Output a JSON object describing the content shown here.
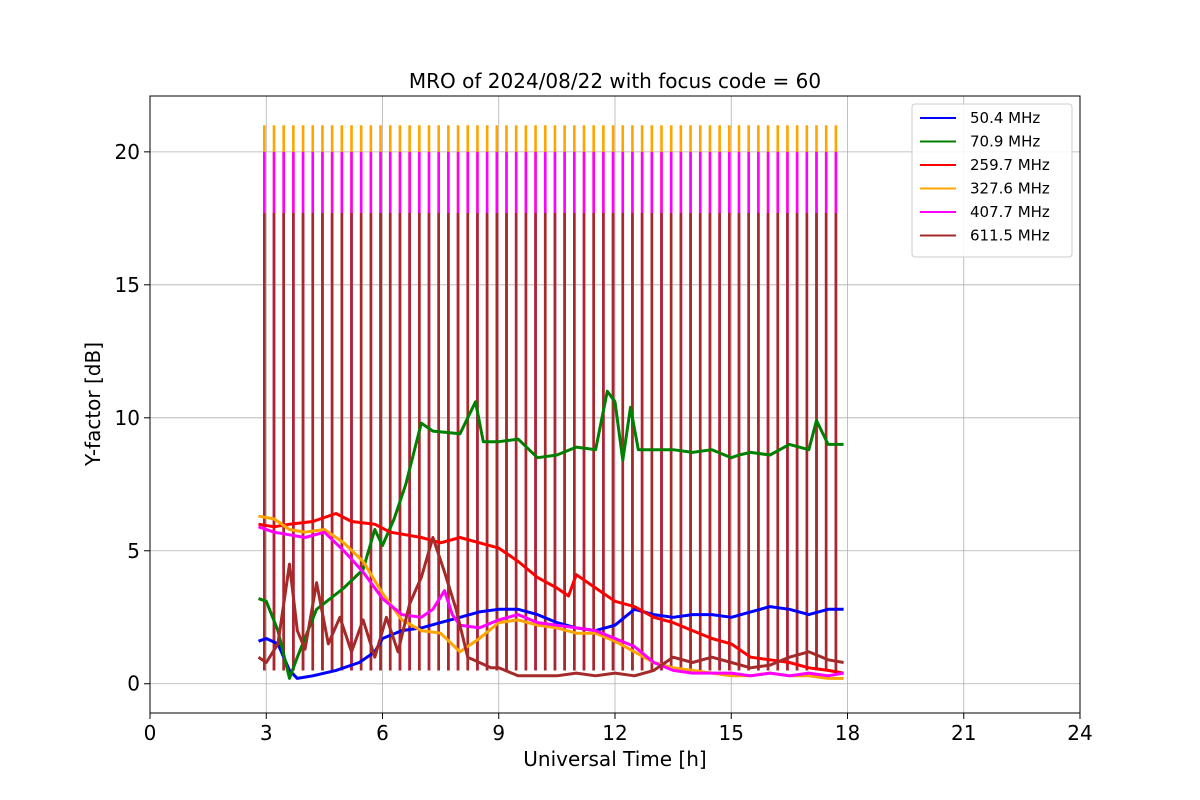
{
  "chart_data": {
    "type": "line",
    "title": "MRO of 2024/08/22 with focus code = 60",
    "xlabel": "Universal Time [h]",
    "ylabel": "Y-factor [dB]",
    "xlim": [
      0,
      24
    ],
    "ylim": [
      -1.1,
      22.1
    ],
    "xticks": [
      0,
      3,
      6,
      9,
      12,
      15,
      18,
      21,
      24
    ],
    "yticks": [
      0,
      5,
      10,
      15,
      20
    ],
    "grid": true,
    "legend_position": "top-right",
    "calibration_spikes": {
      "start_h": 2.95,
      "end_h": 17.75,
      "interval_h": 0.25,
      "peak_db": {
        "327.6 MHz": 21.0,
        "407.7 MHz": 20.0,
        "611.5 MHz": 17.7
      }
    },
    "series": [
      {
        "name": " 50.4 MHz",
        "color": "#0000ff",
        "x": [
          2.8,
          3.0,
          3.3,
          3.6,
          3.8,
          4.2,
          4.8,
          5.4,
          5.8,
          6.0,
          6.5,
          7.0,
          7.5,
          8.0,
          8.5,
          9.0,
          9.5,
          10.0,
          10.5,
          11.0,
          11.5,
          12.0,
          12.5,
          13.0,
          13.5,
          14.0,
          14.5,
          15.0,
          15.5,
          16.0,
          16.5,
          17.0,
          17.5,
          17.9
        ],
        "y": [
          1.6,
          1.7,
          1.5,
          0.5,
          0.2,
          0.3,
          0.5,
          0.8,
          1.2,
          1.7,
          2.0,
          2.1,
          2.3,
          2.5,
          2.7,
          2.8,
          2.8,
          2.6,
          2.3,
          2.1,
          2.0,
          2.2,
          2.8,
          2.6,
          2.5,
          2.6,
          2.6,
          2.5,
          2.7,
          2.9,
          2.8,
          2.6,
          2.8,
          2.8
        ]
      },
      {
        "name": " 70.9 MHz",
        "color": "#008000",
        "x": [
          2.8,
          3.0,
          3.3,
          3.6,
          3.8,
          4.3,
          5.0,
          5.5,
          5.8,
          6.0,
          6.3,
          6.6,
          7.0,
          7.3,
          8.0,
          8.4,
          8.6,
          9.0,
          9.5,
          10.0,
          10.5,
          11.0,
          11.5,
          11.8,
          12.0,
          12.2,
          12.4,
          12.6,
          13.0,
          13.5,
          14.0,
          14.5,
          15.0,
          15.2,
          15.5,
          16.0,
          16.5,
          17.0,
          17.2,
          17.5,
          17.9
        ],
        "y": [
          3.2,
          3.1,
          2.0,
          0.2,
          1.0,
          2.8,
          3.6,
          4.3,
          5.8,
          5.2,
          6.2,
          7.5,
          9.8,
          9.5,
          9.4,
          10.6,
          9.1,
          9.1,
          9.2,
          8.5,
          8.6,
          8.9,
          8.8,
          11.0,
          10.6,
          8.4,
          10.4,
          8.8,
          8.8,
          8.8,
          8.7,
          8.8,
          8.5,
          8.6,
          8.7,
          8.6,
          9.0,
          8.8,
          9.9,
          9.0,
          9.0
        ]
      },
      {
        "name": "259.7 MHz",
        "color": "#ff0000",
        "x": [
          2.8,
          3.2,
          3.6,
          4.2,
          4.8,
          5.2,
          5.8,
          6.2,
          6.6,
          7.0,
          7.5,
          8.0,
          8.5,
          9.0,
          9.5,
          10.0,
          10.5,
          10.8,
          11.0,
          11.5,
          12.0,
          12.5,
          13.0,
          13.5,
          14.0,
          14.5,
          15.0,
          15.5,
          16.0,
          16.5,
          17.0,
          17.5,
          17.9
        ],
        "y": [
          6.0,
          5.9,
          6.0,
          6.1,
          6.4,
          6.1,
          6.0,
          5.7,
          5.6,
          5.5,
          5.3,
          5.5,
          5.3,
          5.1,
          4.6,
          4.0,
          3.6,
          3.3,
          4.1,
          3.6,
          3.1,
          2.9,
          2.5,
          2.3,
          2.0,
          1.7,
          1.5,
          1.0,
          0.9,
          0.8,
          0.6,
          0.5,
          0.4
        ]
      },
      {
        "name": "327.6 MHz",
        "color": "#ffa500",
        "x": [
          2.8,
          3.2,
          3.6,
          4.0,
          4.5,
          5.0,
          5.5,
          6.0,
          6.5,
          7.0,
          7.5,
          8.0,
          8.5,
          9.0,
          9.5,
          10.0,
          10.5,
          11.0,
          11.5,
          12.0,
          12.5,
          13.0,
          13.5,
          14.0,
          14.5,
          15.0,
          15.5,
          16.0,
          16.5,
          17.0,
          17.5,
          17.9
        ],
        "y": [
          6.3,
          6.2,
          5.8,
          5.7,
          5.8,
          5.3,
          4.6,
          3.4,
          2.4,
          2.0,
          1.9,
          1.2,
          1.7,
          2.3,
          2.4,
          2.2,
          2.1,
          1.9,
          1.9,
          1.6,
          1.2,
          0.8,
          0.6,
          0.5,
          0.4,
          0.3,
          0.3,
          0.4,
          0.3,
          0.3,
          0.2,
          0.2
        ]
      },
      {
        "name": "407.7 MHz",
        "color": "#ff00ff",
        "x": [
          2.8,
          3.2,
          3.6,
          4.0,
          4.5,
          5.0,
          5.5,
          6.0,
          6.5,
          7.0,
          7.3,
          7.6,
          7.8,
          8.0,
          8.5,
          9.0,
          9.5,
          10.0,
          10.5,
          11.0,
          11.5,
          12.0,
          12.5,
          13.0,
          13.5,
          14.0,
          14.5,
          15.0,
          15.5,
          16.0,
          16.5,
          17.0,
          17.5,
          17.9
        ],
        "y": [
          5.9,
          5.7,
          5.6,
          5.5,
          5.7,
          5.0,
          4.2,
          3.2,
          2.6,
          2.5,
          2.8,
          3.5,
          2.6,
          2.2,
          2.1,
          2.4,
          2.6,
          2.3,
          2.2,
          2.1,
          2.0,
          1.7,
          1.4,
          0.8,
          0.5,
          0.4,
          0.4,
          0.4,
          0.3,
          0.4,
          0.3,
          0.4,
          0.3,
          0.4
        ]
      },
      {
        "name": "611.5 MHz",
        "color": "#a52a2a",
        "x": [
          2.8,
          3.0,
          3.3,
          3.6,
          3.8,
          4.0,
          4.3,
          4.6,
          4.9,
          5.2,
          5.5,
          5.8,
          6.1,
          6.4,
          6.7,
          7.0,
          7.3,
          7.6,
          7.9,
          8.2,
          8.5,
          8.8,
          9.0,
          9.5,
          10.0,
          10.5,
          11.0,
          11.5,
          12.0,
          12.5,
          13.0,
          13.5,
          14.0,
          14.5,
          15.0,
          15.5,
          16.0,
          16.5,
          17.0,
          17.5,
          17.9
        ],
        "y": [
          1.0,
          0.8,
          1.5,
          4.5,
          2.0,
          1.3,
          3.8,
          1.5,
          2.5,
          1.2,
          2.4,
          1.0,
          2.5,
          1.2,
          3.0,
          4.0,
          5.5,
          4.2,
          2.8,
          1.0,
          0.8,
          0.6,
          0.6,
          0.3,
          0.3,
          0.3,
          0.4,
          0.3,
          0.4,
          0.3,
          0.5,
          1.0,
          0.8,
          1.0,
          0.8,
          0.6,
          0.7,
          1.0,
          1.2,
          0.9,
          0.8
        ]
      }
    ]
  }
}
